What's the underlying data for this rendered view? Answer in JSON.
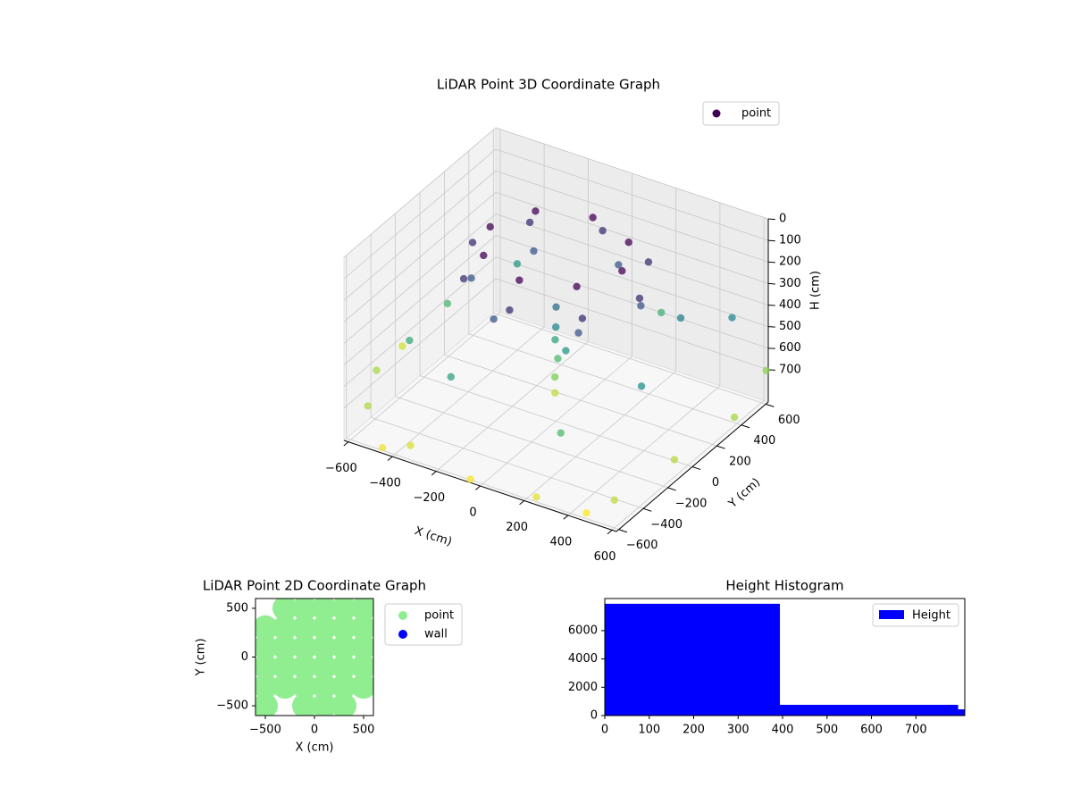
{
  "chart_data": [
    {
      "type": "scatter3d",
      "title": "LiDAR Point 3D Coordinate Graph",
      "xlabel": "X (cm)",
      "ylabel": "Y (cm)",
      "zlabel": "H (cm)",
      "xlim": [
        -620,
        620
      ],
      "ylim": [
        -620,
        620
      ],
      "zlim": [
        0,
        850
      ],
      "z_inverted": true,
      "xticks": [
        {
          "value": -600,
          "label": "−600"
        },
        {
          "value": -400,
          "label": "−400"
        },
        {
          "value": -200,
          "label": "−200"
        },
        0,
        200,
        400,
        600
      ],
      "yticks": [
        {
          "value": -600,
          "label": "−600"
        },
        {
          "value": -400,
          "label": "−400"
        },
        {
          "value": -200,
          "label": "−200"
        },
        0,
        200,
        400,
        600
      ],
      "zticks": [
        0,
        100,
        200,
        300,
        400,
        500,
        600,
        700
      ],
      "colormap": "viridis",
      "legend": "upper right",
      "series": [
        {
          "name": "point",
          "color": "#440154",
          "x": [
            300,
            212,
            0,
            -212,
            -300,
            -212,
            0,
            212,
            380,
            270,
            0,
            -270,
            -380,
            -270,
            0,
            270,
            330,
            100,
            -230,
            -330,
            -100,
            230,
            0,
            10,
            -10,
            5,
            0,
            -5,
            400,
            500,
            -400,
            -500,
            200,
            300,
            -200,
            550,
            -550,
            100,
            -550,
            -300,
            0,
            300,
            600,
            -650,
            -700,
            650,
            700,
            650,
            -400,
            500
          ],
          "y": [
            0,
            212,
            300,
            212,
            0,
            -212,
            -300,
            -212,
            0,
            270,
            380,
            270,
            0,
            -270,
            -380,
            -270,
            100,
            330,
            230,
            -100,
            -330,
            -230,
            0,
            -20,
            10,
            5,
            -10,
            0,
            300,
            -200,
            400,
            -300,
            500,
            -500,
            -500,
            450,
            100,
            -100,
            -550,
            -650,
            -700,
            -700,
            -600,
            -300,
            0,
            -200,
            200,
            550,
            -700,
            -650
          ],
          "z": [
            50,
            50,
            50,
            50,
            50,
            50,
            50,
            50,
            150,
            150,
            150,
            150,
            150,
            150,
            150,
            150,
            250,
            250,
            250,
            250,
            250,
            250,
            320,
            400,
            480,
            560,
            640,
            720,
            380,
            420,
            450,
            500,
            520,
            560,
            470,
            400,
            540,
            440,
            700,
            750,
            780,
            760,
            720,
            690,
            740,
            710,
            690,
            660,
            770,
            790
          ]
        }
      ]
    },
    {
      "type": "scatter",
      "title": "LiDAR Point 2D Coordinate Graph",
      "xlabel": "X (cm)",
      "ylabel": "Y (cm)",
      "xlim": [
        -600,
        600
      ],
      "ylim": [
        -600,
        600
      ],
      "xticks": [
        {
          "value": -500,
          "label": "−500"
        },
        0,
        500
      ],
      "yticks": [
        {
          "value": -500,
          "label": "−500"
        },
        0,
        500
      ],
      "legend": "outside right",
      "series": [
        {
          "name": "point",
          "color": "#90ee90",
          "x": [
            -300,
            -100,
            100,
            300,
            500,
            -500,
            -300,
            -100,
            100,
            300,
            500,
            -500,
            -300,
            -100,
            100,
            300,
            500,
            -500,
            -300,
            -100,
            100,
            300,
            500,
            -500,
            -300,
            -100,
            100,
            300,
            500,
            -500,
            -100,
            100,
            300
          ],
          "y": [
            500,
            500,
            500,
            500,
            500,
            300,
            300,
            300,
            300,
            300,
            300,
            100,
            100,
            100,
            100,
            100,
            100,
            -100,
            -100,
            -100,
            -100,
            -100,
            -100,
            -300,
            -300,
            -300,
            -300,
            -300,
            -300,
            -500,
            -500,
            -500,
            -500
          ]
        },
        {
          "name": "wall",
          "color": "#0000ff",
          "x": [],
          "y": []
        }
      ]
    },
    {
      "type": "histogram",
      "title": "Height Histogram",
      "bins": [
        0,
        394,
        795,
        810
      ],
      "series": [
        {
          "name": "Height",
          "color": "#0000ff",
          "values": [
            7900,
            760,
            440
          ]
        }
      ],
      "xlim": [
        0,
        810
      ],
      "ylim": [
        0,
        8270
      ],
      "xticks": [
        0,
        100,
        200,
        300,
        400,
        500,
        600,
        700
      ],
      "yticks": [
        0,
        2000,
        4000,
        6000
      ],
      "legend": "upper right"
    }
  ]
}
